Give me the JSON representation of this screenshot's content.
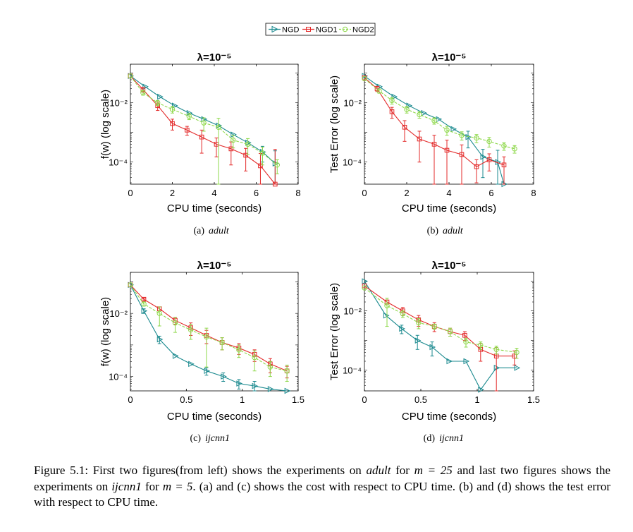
{
  "legend": {
    "entries": [
      "NGD",
      "NGD1",
      "NGD2"
    ]
  },
  "series_colors": {
    "NGD": "#1b8a8f",
    "NGD1": "#e32a2a",
    "NGD2": "#8ed84a"
  },
  "chart_data": [
    {
      "id": "a",
      "type": "line",
      "title": "λ=10⁻⁵",
      "xlabel": "CPU time (seconds)",
      "ylabel": "f(w)  (log scale)",
      "yscale": "log",
      "xlim": [
        0,
        8
      ],
      "ylim": [
        1.8e-05,
        0.2
      ],
      "xticks": [
        0,
        2,
        4,
        6,
        8
      ],
      "xtick_labels": [
        "0",
        "2",
        "4",
        "6",
        "8"
      ],
      "yticks": [
        0.0001,
        0.01
      ],
      "ytick_labels": [
        "10⁻⁴",
        "10⁻²"
      ],
      "subcaption": {
        "label": "(a)",
        "dataset": "adult"
      },
      "series": [
        {
          "name": "NGD",
          "marker": "triangle",
          "x": [
            0,
            0.7,
            1.4,
            2.1,
            2.8,
            3.5,
            4.2,
            4.9,
            5.6,
            6.3,
            6.9
          ],
          "y": [
            0.08,
            0.035,
            0.016,
            0.008,
            0.0045,
            0.0028,
            0.0017,
            0.00085,
            0.00045,
            0.00022,
            9e-05
          ],
          "err": [
            0,
            0,
            0,
            0,
            0,
            0,
            0,
            0,
            0,
            0.00012,
            0.00015
          ]
        },
        {
          "name": "NGD1",
          "marker": "square",
          "x": [
            0,
            0.6,
            1.3,
            2.0,
            2.7,
            3.4,
            4.1,
            4.8,
            5.5,
            6.2,
            6.9
          ],
          "y": [
            0.08,
            0.028,
            0.008,
            0.002,
            0.0012,
            0.0007,
            0.0004,
            0.00028,
            0.00017,
            7.5e-05,
            1.8e-05
          ],
          "err": [
            0,
            0.005,
            0.0025,
            0.0008,
            0.0004,
            0.0005,
            0.00025,
            0.0002,
            0.00012,
            0.00012,
            0.00025
          ]
        },
        {
          "name": "NGD2",
          "marker": "circle",
          "x": [
            0,
            0.6,
            1.3,
            2.0,
            2.8,
            3.5,
            4.2,
            4.9,
            5.6,
            6.3,
            7.0
          ],
          "y": [
            0.08,
            0.022,
            0.01,
            0.006,
            0.0035,
            0.0021,
            0.0015,
            0.00055,
            0.0004,
            0.0002,
            8e-05
          ],
          "err": [
            0,
            0.004,
            0.002,
            0.0015,
            0.0008,
            0.001,
            0.0015,
            0.00025,
            0.00022,
            0.00012,
            4e-05
          ]
        }
      ]
    },
    {
      "id": "b",
      "type": "line",
      "title": "λ=10⁻⁵",
      "xlabel": "CPU time (seconds)",
      "ylabel": "Test Error (log scale)",
      "yscale": "log",
      "xlim": [
        0,
        8
      ],
      "ylim": [
        1.8e-05,
        0.2
      ],
      "xticks": [
        0,
        2,
        4,
        6,
        8
      ],
      "xtick_labels": [
        "0",
        "2",
        "4",
        "6",
        "8"
      ],
      "yticks": [
        0.0001,
        0.01
      ],
      "ytick_labels": [
        "10⁻⁴",
        "10⁻²"
      ],
      "subcaption": {
        "label": "(b)",
        "dataset": "adult"
      },
      "series": [
        {
          "name": "NGD",
          "marker": "triangle",
          "x": [
            0,
            0.7,
            1.4,
            2.1,
            2.8,
            3.5,
            4.2,
            4.9,
            5.6,
            6.3,
            6.6
          ],
          "y": [
            0.08,
            0.035,
            0.016,
            0.008,
            0.0045,
            0.0028,
            0.0013,
            0.0007,
            0.00015,
            0.0001,
            1.8e-05
          ],
          "err": [
            0,
            0,
            0,
            0,
            0,
            0,
            0,
            0.0004,
            0.00012,
            0.00015,
            0
          ]
        },
        {
          "name": "NGD1",
          "marker": "square",
          "x": [
            0,
            0.6,
            1.3,
            1.9,
            2.6,
            3.3,
            3.9,
            4.6,
            5.3,
            5.9,
            6.6
          ],
          "y": [
            0.07,
            0.03,
            0.005,
            0.0015,
            0.0006,
            0.0004,
            0.00025,
            0.00018,
            7e-05,
            0.00012,
            8e-05
          ],
          "err": [
            0,
            0.006,
            0.002,
            0.001,
            0.0005,
            0.0004,
            0.0003,
            0.0002,
            5e-05,
            7e-05,
            7e-05
          ]
        },
        {
          "name": "NGD2",
          "marker": "circle",
          "x": [
            0,
            0.7,
            1.3,
            2.0,
            2.6,
            3.3,
            3.9,
            4.6,
            5.3,
            5.9,
            6.6,
            7.1
          ],
          "y": [
            0.065,
            0.025,
            0.012,
            0.006,
            0.004,
            0.0025,
            0.0012,
            0.0008,
            0.00065,
            0.0005,
            0.00035,
            0.00028
          ],
          "err": [
            0,
            0.004,
            0.003,
            0.0015,
            0.001,
            0.0006,
            0.0004,
            0.00025,
            0.0002,
            0.00018,
            0.0001,
            8e-05
          ]
        }
      ]
    },
    {
      "id": "c",
      "type": "line",
      "title": "λ=10⁻⁵",
      "xlabel": "CPU time (seconds)",
      "ylabel": "f(w)  (log scale)",
      "yscale": "log",
      "xlim": [
        0,
        1.5
      ],
      "ylim": [
        3.5e-05,
        0.2
      ],
      "xticks": [
        0,
        0.5,
        1,
        1.5
      ],
      "xtick_labels": [
        "0",
        "0.5",
        "1",
        "1.5"
      ],
      "yticks": [
        0.0001,
        0.01
      ],
      "ytick_labels": [
        "10⁻⁴",
        "10⁻²"
      ],
      "subcaption": {
        "label": "(c)",
        "dataset": "ijcnn1"
      },
      "series": [
        {
          "name": "NGD",
          "marker": "triangle",
          "x": [
            0,
            0.12,
            0.26,
            0.4,
            0.54,
            0.68,
            0.83,
            0.97,
            1.11,
            1.25,
            1.4
          ],
          "y": [
            0.08,
            0.012,
            0.0015,
            0.00045,
            0.00025,
            0.00015,
            0.0001,
            6e-05,
            5e-05,
            4e-05,
            3.5e-05
          ],
          "err": [
            0,
            0.002,
            0.0004,
            0,
            0,
            4e-05,
            3e-05,
            2e-05,
            2e-05,
            0,
            0
          ]
        },
        {
          "name": "NGD1",
          "marker": "square",
          "x": [
            0,
            0.12,
            0.26,
            0.4,
            0.54,
            0.68,
            0.82,
            0.97,
            1.11,
            1.25,
            1.4
          ],
          "y": [
            0.08,
            0.028,
            0.014,
            0.006,
            0.0035,
            0.002,
            0.0012,
            0.0008,
            0.0005,
            0.00025,
            0.00015
          ],
          "err": [
            0,
            0.003,
            0.002,
            0.0015,
            0.0015,
            0.0009,
            0.0005,
            0.0003,
            0.0002,
            0.00012,
            6e-05
          ]
        },
        {
          "name": "NGD2",
          "marker": "circle",
          "x": [
            0,
            0.12,
            0.26,
            0.4,
            0.54,
            0.68,
            0.82,
            0.97,
            1.11,
            1.25,
            1.4
          ],
          "y": [
            0.08,
            0.02,
            0.01,
            0.005,
            0.003,
            0.0018,
            0.0012,
            0.0007,
            0.0004,
            0.0002,
            0.00015
          ],
          "err": [
            0,
            0.003,
            0.006,
            0.0025,
            0.0015,
            0.0016,
            0.0005,
            0.0003,
            0.00025,
            0.0001,
            8e-05
          ]
        }
      ]
    },
    {
      "id": "d",
      "type": "line",
      "title": "λ=10⁻⁵",
      "xlabel": "CPU time (seconds)",
      "ylabel": "Test Error (log scale)",
      "yscale": "log",
      "xlim": [
        0,
        1.5
      ],
      "ylim": [
        2e-05,
        0.2
      ],
      "xticks": [
        0,
        0.5,
        1,
        1.5
      ],
      "xtick_labels": [
        "0",
        "0.5",
        "1",
        "1.5"
      ],
      "yticks": [
        0.0001,
        0.01
      ],
      "ytick_labels": [
        "10⁻⁴",
        "10⁻²"
      ],
      "subcaption": {
        "label": "(d)",
        "dataset": "ijcnn1"
      },
      "series": [
        {
          "name": "NGD",
          "marker": "triangle",
          "x": [
            0,
            0.19,
            0.33,
            0.47,
            0.6,
            0.75,
            0.9,
            1.03,
            1.17,
            1.35
          ],
          "y": [
            0.1,
            0.007,
            0.0025,
            0.001,
            0.0006,
            0.0002,
            0.0002,
            2.2e-05,
            0.00012,
            0.00012
          ],
          "err": [
            0,
            0,
            0.0008,
            0.0005,
            0.0003,
            0,
            0,
            0,
            0,
            0
          ]
        },
        {
          "name": "NGD1",
          "marker": "square",
          "x": [
            0,
            0.2,
            0.34,
            0.48,
            0.62,
            0.76,
            0.89,
            1.03,
            1.17,
            1.33
          ],
          "y": [
            0.07,
            0.02,
            0.01,
            0.005,
            0.003,
            0.002,
            0.0015,
            0.0005,
            0.0003,
            0.0003
          ],
          "err": [
            0,
            0.003,
            0.003,
            0.002,
            0.001,
            0.0006,
            0.0005,
            0.0003,
            0.00028,
            0.00015
          ]
        },
        {
          "name": "NGD2",
          "marker": "circle",
          "x": [
            0,
            0.2,
            0.34,
            0.48,
            0.62,
            0.76,
            0.9,
            1.03,
            1.17,
            1.35
          ],
          "y": [
            0.06,
            0.015,
            0.008,
            0.004,
            0.003,
            0.002,
            0.0009,
            0.0007,
            0.0005,
            0.0004
          ],
          "err": [
            0,
            0.012,
            0.002,
            0.0015,
            0.0006,
            0.0006,
            0.0003,
            0.0002,
            0.00015,
            0.00015
          ]
        }
      ]
    }
  ],
  "caption": {
    "label": "Figure 5.1:",
    "t1": " First two figures(from left) shows the experiments on ",
    "adult": "adult",
    "t2": " for ",
    "m1": "m = 25",
    "t3": " and last two figures shows the experiments on ",
    "ijcnn1": "ijcnn1",
    "t4": " for ",
    "m2": "m = 5",
    "t5": ". (a) and (c) shows the cost with respect to CPU time. (b) and (d) shows the test error with respect to CPU time."
  }
}
